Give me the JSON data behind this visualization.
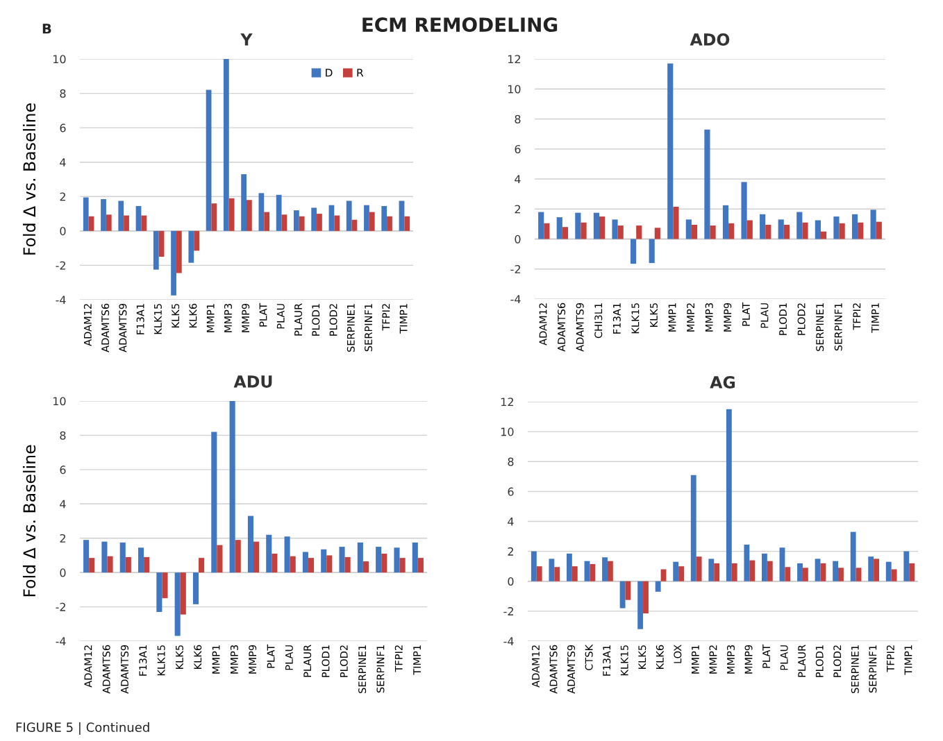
{
  "chart_data": [
    {
      "type": "bar",
      "title": "Y",
      "ylabel": "Fold Δ vs. Baseline",
      "annotations": [
        "B",
        "ECM REMODELING",
        "FIGURE 5 | Continued"
      ],
      "categories": [
        "ADAM12",
        "ADAMTS6",
        "ADAMTS9",
        "F13A1",
        "KLK15",
        "KLK5",
        "KLK6",
        "MMP1",
        "MMP3",
        "MMP9",
        "PLAT",
        "PLAU",
        "PLAUR",
        "PLOD1",
        "PLOD2",
        "SERPINE1",
        "SERPINF1",
        "TFPI2",
        "TIMP1"
      ],
      "series": [
        {
          "name": "D",
          "color": "#4177c1",
          "values": [
            1.95,
            1.85,
            1.75,
            1.45,
            -2.25,
            -3.75,
            -1.85,
            8.2,
            10.0,
            3.3,
            2.2,
            2.1,
            1.2,
            1.35,
            1.5,
            1.75,
            1.5,
            1.45,
            1.75
          ]
        },
        {
          "name": "R",
          "color": "#c4403d",
          "values": [
            0.85,
            0.95,
            0.9,
            0.9,
            -1.5,
            -2.45,
            -1.15,
            1.6,
            1.9,
            1.8,
            1.1,
            0.95,
            0.85,
            1.0,
            0.9,
            0.65,
            1.1,
            0.85,
            0.85
          ]
        }
      ],
      "ylim": [
        -4,
        10
      ],
      "yticks": [
        -4,
        -2,
        0,
        2,
        4,
        6,
        8,
        10
      ],
      "grid": "y",
      "legend": "top right"
    },
    {
      "type": "bar",
      "title": "ADO",
      "categories": [
        "ADAM12",
        "ADAMTS6",
        "ADAMTS9",
        "CHI3L1",
        "F13A1",
        "KLK15",
        "KLK5",
        "MMP1",
        "MMP2",
        "MMP3",
        "MMP9",
        "PLAT",
        "PLAU",
        "PLOD1",
        "PLOD2",
        "SERPINE1",
        "SERPINF1",
        "TFPI2",
        "TIMP1"
      ],
      "series": [
        {
          "color": "#4177c1",
          "values": [
            1.8,
            1.45,
            1.75,
            1.75,
            1.3,
            -1.65,
            -1.6,
            11.7,
            1.3,
            7.3,
            2.25,
            3.8,
            1.65,
            1.3,
            1.8,
            1.25,
            1.5,
            1.65,
            1.95
          ]
        },
        {
          "color": "#c4403d",
          "values": [
            1.05,
            0.8,
            1.1,
            1.5,
            0.9,
            0.9,
            0.75,
            2.15,
            0.95,
            0.9,
            1.05,
            1.25,
            0.95,
            0.95,
            1.1,
            0.5,
            1.05,
            1.1,
            1.15
          ]
        }
      ],
      "ylim": [
        -4,
        12
      ],
      "yticks": [
        -4,
        -2,
        0,
        2,
        4,
        6,
        8,
        10,
        12
      ],
      "grid": "y"
    },
    {
      "type": "bar",
      "title": "ADU",
      "ylabel": "Fold Δ vs. Baseline",
      "categories": [
        "ADAM12",
        "ADAMTS6",
        "ADAMTS9",
        "F13A1",
        "KLK15",
        "KLK5",
        "KLK6",
        "MMP1",
        "MMP3",
        "MMP9",
        "PLAT",
        "PLAU",
        "PLAUR",
        "PLOD1",
        "PLOD2",
        "SERPINE1",
        "SERPINF1",
        "TFPI2",
        "TIMP1"
      ],
      "series": [
        {
          "color": "#4177c1",
          "values": [
            1.9,
            1.8,
            1.75,
            1.45,
            -2.3,
            -3.7,
            -1.85,
            8.2,
            10.0,
            3.3,
            2.2,
            2.1,
            1.2,
            1.35,
            1.5,
            1.75,
            1.5,
            1.45,
            1.75
          ]
        },
        {
          "color": "#c4403d",
          "values": [
            0.85,
            0.95,
            0.9,
            0.9,
            -1.5,
            -2.45,
            0.85,
            1.6,
            1.9,
            1.8,
            1.1,
            0.95,
            0.85,
            1.0,
            0.9,
            0.65,
            1.1,
            0.85,
            0.85
          ]
        }
      ],
      "ylim": [
        -4,
        10
      ],
      "yticks": [
        -4,
        -2,
        0,
        2,
        4,
        6,
        8,
        10
      ],
      "grid": "y"
    },
    {
      "type": "bar",
      "title": "AG",
      "categories": [
        "ADAM12",
        "ADAMTS6",
        "ADAMTS9",
        "CTSK",
        "F13A1",
        "KLK15",
        "KLK5",
        "KLK6",
        "LOX",
        "MMP1",
        "MMP2",
        "MMP3",
        "MMP9",
        "PLAT",
        "PLAU",
        "PLAUR",
        "PLOD1",
        "PLOD2",
        "SERPINE1",
        "SERPINF1",
        "TFPI2",
        "TIMP1"
      ],
      "series": [
        {
          "color": "#4177c1",
          "values": [
            2.0,
            1.5,
            1.85,
            1.35,
            1.6,
            -1.8,
            -3.2,
            -0.7,
            1.3,
            7.1,
            1.5,
            11.5,
            2.45,
            1.85,
            2.25,
            1.2,
            1.5,
            1.35,
            3.3,
            1.65,
            1.3,
            2.0
          ]
        },
        {
          "color": "#c4403d",
          "values": [
            1.0,
            0.95,
            1.0,
            1.15,
            1.35,
            -1.25,
            -2.15,
            0.8,
            1.0,
            1.65,
            1.2,
            1.2,
            1.4,
            1.35,
            0.95,
            0.9,
            1.2,
            0.9,
            0.9,
            1.5,
            0.8,
            1.2
          ]
        }
      ],
      "ylim": [
        -4,
        12
      ],
      "yticks": [
        -4,
        -2,
        0,
        2,
        4,
        6,
        8,
        10,
        12
      ],
      "grid": "y"
    }
  ]
}
